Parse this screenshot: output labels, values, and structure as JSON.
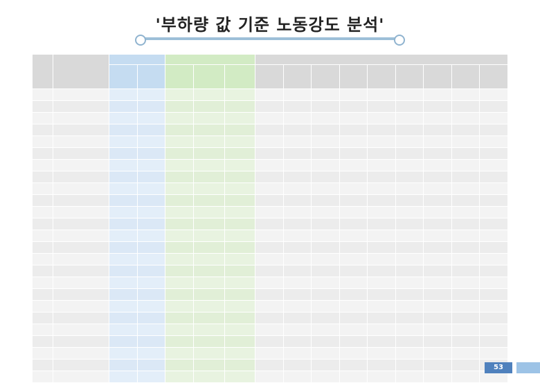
{
  "title": "'부하량 값 기준 노동강도 분석'",
  "page_number": "53",
  "table": {
    "group_headers": [
      "",
      "",
      "",
      "",
      ""
    ],
    "column_headers": [
      "",
      "",
      "",
      "",
      "",
      "",
      "",
      "",
      "",
      "",
      "",
      "",
      "",
      "",
      "",
      "",
      ""
    ],
    "rows": [
      [
        "",
        "",
        "",
        "",
        "",
        "",
        "",
        "",
        "",
        "",
        "",
        "",
        "",
        "",
        "",
        "",
        ""
      ],
      [
        "",
        "",
        "",
        "",
        "",
        "",
        "",
        "",
        "",
        "",
        "",
        "",
        "",
        "",
        "",
        "",
        ""
      ],
      [
        "",
        "",
        "",
        "",
        "",
        "",
        "",
        "",
        "",
        "",
        "",
        "",
        "",
        "",
        "",
        "",
        ""
      ],
      [
        "",
        "",
        "",
        "",
        "",
        "",
        "",
        "",
        "",
        "",
        "",
        "",
        "",
        "",
        "",
        "",
        ""
      ],
      [
        "",
        "",
        "",
        "",
        "",
        "",
        "",
        "",
        "",
        "",
        "",
        "",
        "",
        "",
        "",
        "",
        ""
      ],
      [
        "",
        "",
        "",
        "",
        "",
        "",
        "",
        "",
        "",
        "",
        "",
        "",
        "",
        "",
        "",
        "",
        ""
      ],
      [
        "",
        "",
        "",
        "",
        "",
        "",
        "",
        "",
        "",
        "",
        "",
        "",
        "",
        "",
        "",
        "",
        ""
      ],
      [
        "",
        "",
        "",
        "",
        "",
        "",
        "",
        "",
        "",
        "",
        "",
        "",
        "",
        "",
        "",
        "",
        ""
      ],
      [
        "",
        "",
        "",
        "",
        "",
        "",
        "",
        "",
        "",
        "",
        "",
        "",
        "",
        "",
        "",
        "",
        ""
      ],
      [
        "",
        "",
        "",
        "",
        "",
        "",
        "",
        "",
        "",
        "",
        "",
        "",
        "",
        "",
        "",
        "",
        ""
      ],
      [
        "",
        "",
        "",
        "",
        "",
        "",
        "",
        "",
        "",
        "",
        "",
        "",
        "",
        "",
        "",
        "",
        ""
      ],
      [
        "",
        "",
        "",
        "",
        "",
        "",
        "",
        "",
        "",
        "",
        "",
        "",
        "",
        "",
        "",
        "",
        ""
      ],
      [
        "",
        "",
        "",
        "",
        "",
        "",
        "",
        "",
        "",
        "",
        "",
        "",
        "",
        "",
        "",
        "",
        ""
      ],
      [
        "",
        "",
        "",
        "",
        "",
        "",
        "",
        "",
        "",
        "",
        "",
        "",
        "",
        "",
        "",
        "",
        ""
      ],
      [
        "",
        "",
        "",
        "",
        "",
        "",
        "",
        "",
        "",
        "",
        "",
        "",
        "",
        "",
        "",
        "",
        ""
      ],
      [
        "",
        "",
        "",
        "",
        "",
        "",
        "",
        "",
        "",
        "",
        "",
        "",
        "",
        "",
        "",
        "",
        ""
      ],
      [
        "",
        "",
        "",
        "",
        "",
        "",
        "",
        "",
        "",
        "",
        "",
        "",
        "",
        "",
        "",
        "",
        ""
      ],
      [
        "",
        "",
        "",
        "",
        "",
        "",
        "",
        "",
        "",
        "",
        "",
        "",
        "",
        "",
        "",
        "",
        ""
      ],
      [
        "",
        "",
        "",
        "",
        "",
        "",
        "",
        "",
        "",
        "",
        "",
        "",
        "",
        "",
        "",
        "",
        ""
      ],
      [
        "",
        "",
        "",
        "",
        "",
        "",
        "",
        "",
        "",
        "",
        "",
        "",
        "",
        "",
        "",
        "",
        ""
      ],
      [
        "",
        "",
        "",
        "",
        "",
        "",
        "",
        "",
        "",
        "",
        "",
        "",
        "",
        "",
        "",
        "",
        ""
      ],
      [
        "",
        "",
        "",
        "",
        "",
        "",
        "",
        "",
        "",
        "",
        "",
        "",
        "",
        "",
        "",
        "",
        ""
      ],
      [
        "",
        "",
        "",
        "",
        "",
        "",
        "",
        "",
        "",
        "",
        "",
        "",
        "",
        "",
        "",
        "",
        ""
      ],
      [
        "",
        "",
        "",
        "",
        "",
        "",
        "",
        "",
        "",
        "",
        "",
        "",
        "",
        "",
        "",
        "",
        ""
      ],
      [
        "",
        "",
        "",
        "",
        "",
        "",
        "",
        "",
        "",
        "",
        "",
        "",
        "",
        "",
        "",
        "",
        ""
      ]
    ]
  },
  "colors": {
    "blue_group": "#c5dcf1",
    "green_group": "#d2ebc4",
    "gray_group": "#d9d9d9",
    "page_badge": "#4f81bd"
  }
}
